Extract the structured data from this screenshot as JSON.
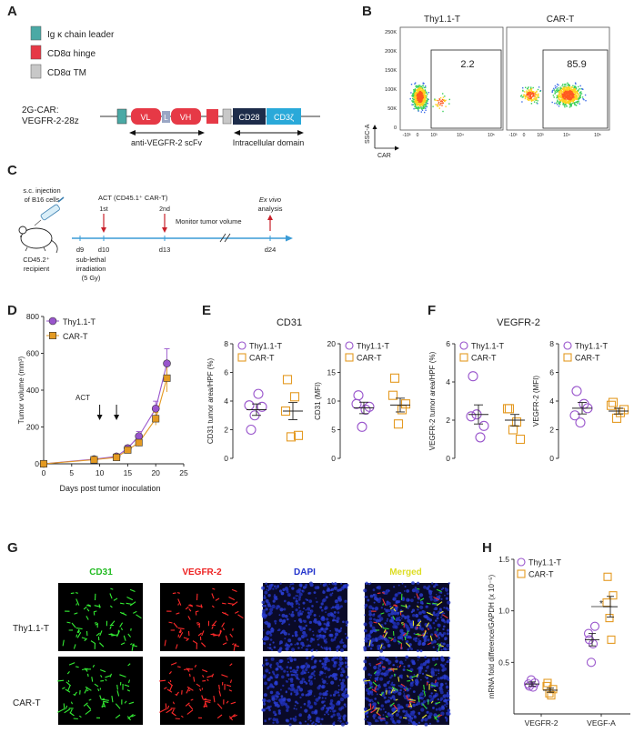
{
  "colors": {
    "purple": "#9955cc",
    "orange": "#e49a22",
    "teal": "#4aa9a5",
    "red": "#e63946",
    "gray": "#c8c8c8",
    "navy": "#1d2c4a",
    "blue": "#2aa9d9",
    "timeline": "#3a9bd6",
    "arrow_red": "#c8202a",
    "green": "#22bb22",
    "img_red": "#ee2222",
    "img_blue": "#2233cc",
    "img_yellow": "#dddd22"
  },
  "panel_a": {
    "label": "A",
    "legend": [
      "Ig κ chain leader",
      "CD8α hinge",
      "CD8α TM"
    ],
    "construct_name": [
      "2G-CAR:",
      "VEGFR-2-28z"
    ],
    "segments": [
      "VL",
      "L",
      "VH",
      "CD28",
      "CD3ζ"
    ],
    "scfv_label": "anti-VEGFR-2 scFv",
    "intracellular_label": "Intracellular domain"
  },
  "panel_b": {
    "label": "B",
    "plots": [
      {
        "title": "Thy1.1-T",
        "gate_value": "2.2"
      },
      {
        "title": "CAR-T",
        "gate_value": "85.9"
      }
    ],
    "y_ticks": [
      "250K",
      "200K",
      "150K",
      "100K",
      "50K",
      "0"
    ],
    "x_ticks": [
      "-10³",
      "0",
      "10³",
      "10⁴",
      "10⁵"
    ],
    "y_label": "SSC-A",
    "x_label": "CAR"
  },
  "panel_c": {
    "label": "C",
    "injection_label": [
      "s.c. injection",
      "of B16 cells"
    ],
    "mouse_label": [
      "CD45.2⁺",
      "recipient"
    ],
    "act_label": "ACT (CD45.1⁺ CAR-T)",
    "dose1": "1st",
    "dose2": "2nd",
    "monitor_label": "Monitor tumor volume",
    "exvivo_label": [
      "Ex vivo",
      "analysis"
    ],
    "days": [
      "d9",
      "d10",
      "d13",
      "d24"
    ],
    "irradiation_label": [
      "sub-lethal",
      "irradiation",
      "(5 Gy)"
    ]
  },
  "panel_d": {
    "label": "D",
    "act_label": "ACT"
  },
  "panel_e": {
    "label": "E",
    "title": "CD31"
  },
  "panel_f": {
    "label": "F",
    "title": "VEGFR-2"
  },
  "panel_g": {
    "label": "G",
    "channels": [
      "CD31",
      "VEGFR-2",
      "DAPI",
      "Merged"
    ],
    "rows": [
      "Thy1.1-T",
      "CAR-T"
    ]
  },
  "panel_h": {
    "label": "H",
    "significance": "*"
  },
  "chart_data": [
    {
      "id": "D",
      "type": "line",
      "xlabel": "Days post tumor inoculation",
      "ylabel": "Tumor volume (mm³)",
      "xlim": [
        0,
        25
      ],
      "ylim": [
        0,
        800
      ],
      "xticks": [
        0,
        5,
        10,
        15,
        20,
        25
      ],
      "yticks": [
        0,
        200,
        400,
        600,
        800
      ],
      "legend_position": "top-left",
      "series": [
        {
          "name": "Thy1.1-T",
          "x": [
            0,
            9,
            13,
            15,
            17,
            20,
            22
          ],
          "y": [
            0,
            25,
            40,
            85,
            150,
            300,
            545
          ],
          "err": [
            0,
            5,
            8,
            15,
            25,
            40,
            80
          ]
        },
        {
          "name": "CAR-T",
          "x": [
            0,
            9,
            13,
            15,
            17,
            20,
            22
          ],
          "y": [
            0,
            22,
            35,
            75,
            115,
            245,
            465
          ],
          "err": [
            0,
            4,
            7,
            12,
            20,
            35,
            75
          ]
        }
      ]
    },
    {
      "id": "E1",
      "type": "scatter",
      "ylabel": "CD31 tumor area/HPF (%)",
      "ylim": [
        0,
        8
      ],
      "yticks": [
        0,
        2,
        4,
        6,
        8
      ],
      "legend_position": "top-left",
      "series": [
        {
          "name": "Thy1.1-T",
          "values": [
            2.0,
            3.6,
            3.0,
            4.5,
            3.7
          ],
          "mean": 3.4,
          "sem": 0.4
        },
        {
          "name": "CAR-T",
          "values": [
            5.5,
            1.6,
            1.5,
            4.3,
            3.3
          ],
          "mean": 3.3,
          "sem": 0.6
        }
      ]
    },
    {
      "id": "E2",
      "type": "scatter",
      "ylabel": "CD31 (MFI)",
      "ylim": [
        0,
        20
      ],
      "yticks": [
        0,
        5,
        10,
        15,
        20
      ],
      "legend_position": "top-left",
      "series": [
        {
          "name": "Thy1.1-T",
          "values": [
            11.0,
            9.0,
            5.5,
            8.5,
            9.5
          ],
          "mean": 8.8,
          "sem": 1.0
        },
        {
          "name": "CAR-T",
          "values": [
            14.0,
            9.5,
            6.0,
            8.5,
            11.0
          ],
          "mean": 9.3,
          "sem": 1.2
        }
      ]
    },
    {
      "id": "F1",
      "type": "scatter",
      "ylabel": "VEGFR-2 tumor area/HPF (%)",
      "ylim": [
        0,
        6
      ],
      "yticks": [
        0,
        2,
        4,
        6
      ],
      "legend_position": "top-left",
      "series": [
        {
          "name": "Thy1.1-T",
          "values": [
            4.3,
            1.7,
            2.3,
            1.1,
            2.2
          ],
          "mean": 2.3,
          "sem": 0.5
        },
        {
          "name": "CAR-T",
          "values": [
            2.6,
            1.0,
            1.5,
            1.9,
            2.6
          ],
          "mean": 2.0,
          "sem": 0.3
        }
      ]
    },
    {
      "id": "F2",
      "type": "scatter",
      "ylabel": "VEGFR-2 (MFI)",
      "ylim": [
        0,
        8
      ],
      "yticks": [
        0,
        2,
        4,
        6,
        8
      ],
      "legend_position": "top-left",
      "series": [
        {
          "name": "Thy1.1-T",
          "values": [
            4.7,
            3.5,
            2.5,
            3.8,
            3.0
          ],
          "mean": 3.5,
          "sem": 0.4
        },
        {
          "name": "CAR-T",
          "values": [
            3.9,
            3.4,
            2.8,
            3.2,
            3.7
          ],
          "mean": 3.3,
          "sem": 0.2
        }
      ]
    },
    {
      "id": "H",
      "type": "scatter",
      "ylabel": "mRNA fold difference/GAPDH (x 10⁻⁵)",
      "ylim": [
        0,
        1.5
      ],
      "yticks": [
        0.5,
        1.0,
        1.5
      ],
      "legend_position": "top-left",
      "categories": [
        "VEGFR-2",
        "VEGF-A"
      ],
      "series": [
        {
          "name": "Thy1.1-T",
          "values": [
            [
              0.27,
              0.3,
              0.33,
              0.26,
              0.29
            ],
            [
              0.72,
              0.85,
              0.5,
              0.68,
              0.78
            ]
          ],
          "mean": [
            0.29,
            0.72
          ],
          "sem": [
            0.02,
            0.06
          ]
        },
        {
          "name": "CAR-T",
          "values": [
            [
              0.3,
              0.24,
              0.2,
              0.18,
              0.27
            ],
            [
              1.33,
              1.15,
              0.93,
              0.72,
              1.08
            ]
          ],
          "mean": [
            0.23,
            1.04
          ],
          "sem": [
            0.02,
            0.1
          ]
        }
      ]
    }
  ]
}
